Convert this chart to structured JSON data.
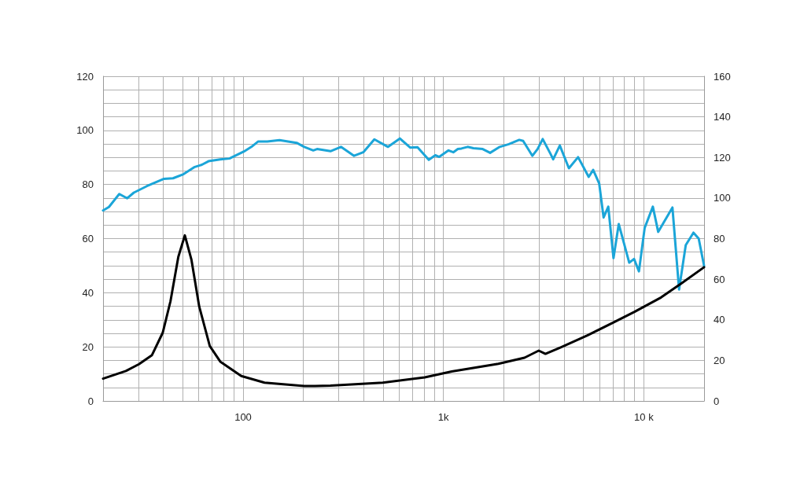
{
  "chart_data": {
    "type": "line",
    "log": "x",
    "grid": true,
    "marker": "none",
    "line_style": "solid",
    "xlim": [
      20,
      20000
    ],
    "xticks": [
      {
        "value": 20,
        "label": null
      },
      {
        "value": 30,
        "label": null
      },
      {
        "value": 40,
        "label": null
      },
      {
        "value": 50,
        "label": null
      },
      {
        "value": 60,
        "label": null
      },
      {
        "value": 70,
        "label": null
      },
      {
        "value": 80,
        "label": null
      },
      {
        "value": 90,
        "label": null
      },
      {
        "value": 100,
        "label": "100"
      },
      {
        "value": 200,
        "label": null
      },
      {
        "value": 300,
        "label": null
      },
      {
        "value": 400,
        "label": null
      },
      {
        "value": 500,
        "label": null
      },
      {
        "value": 600,
        "label": null
      },
      {
        "value": 700,
        "label": null
      },
      {
        "value": 800,
        "label": null
      },
      {
        "value": 900,
        "label": null
      },
      {
        "value": 1000,
        "label": "1k"
      },
      {
        "value": 2000,
        "label": null
      },
      {
        "value": 3000,
        "label": null
      },
      {
        "value": 4000,
        "label": null
      },
      {
        "value": 5000,
        "label": null
      },
      {
        "value": 6000,
        "label": null
      },
      {
        "value": 7000,
        "label": null
      },
      {
        "value": 8000,
        "label": null
      },
      {
        "value": 9000,
        "label": null
      },
      {
        "value": 10000,
        "label": "10 k"
      },
      {
        "value": 20000,
        "label": null
      }
    ],
    "ylim": [
      0,
      120
    ],
    "yticks": [
      0,
      {
        "value": 5,
        "label": null
      },
      {
        "value": 10,
        "label": null
      },
      {
        "value": 15,
        "label": null
      },
      20,
      {
        "value": 25,
        "label": null
      },
      {
        "value": 30,
        "label": null
      },
      {
        "value": 35,
        "label": null
      },
      40,
      {
        "value": 45,
        "label": null
      },
      {
        "value": 50,
        "label": null
      },
      {
        "value": 55,
        "label": null
      },
      60,
      {
        "value": 65,
        "label": null
      },
      {
        "value": 70,
        "label": null
      },
      {
        "value": 75,
        "label": null
      },
      80,
      {
        "value": 85,
        "label": null
      },
      {
        "value": 90,
        "label": null
      },
      {
        "value": 95,
        "label": null
      },
      100,
      {
        "value": 105,
        "label": null
      },
      {
        "value": 110,
        "label": null
      },
      {
        "value": 115,
        "label": null
      },
      120
    ],
    "y2lim": [
      0,
      160
    ],
    "y2ticks": [
      0,
      20,
      40,
      60,
      80,
      100,
      120,
      140,
      160
    ],
    "series": [
      {
        "color": "#1ba5d8",
        "x": [
          20,
          21.4,
          24.1,
          26.4,
          28.5,
          33.1,
          40.3,
          44.7,
          50.4,
          57,
          62.3,
          67.2,
          76.9,
          85.5,
          101,
          110,
          119,
          132,
          152,
          185,
          202,
          224,
          234,
          273,
          308,
          358,
          398,
          452,
          529,
          606,
          684,
          742,
          845,
          911,
          953,
          1060,
          1120,
          1180,
          1230,
          1320,
          1410,
          1570,
          1710,
          1910,
          2120,
          2390,
          2500,
          2780,
          2950,
          3130,
          3430,
          3530,
          3810,
          4230,
          4700,
          5310,
          5590,
          5990,
          6300,
          6650,
          7060,
          7500,
          8460,
          8940,
          9460,
          10100,
          11100,
          11800,
          13900,
          15000,
          16200,
          17700,
          18800,
          20000
        ],
        "values": [
          70.4,
          71.7,
          76.5,
          74.9,
          77,
          79.4,
          82.1,
          82.3,
          83.8,
          86.4,
          87.3,
          88.6,
          89.3,
          89.6,
          92.2,
          93.9,
          95.9,
          95.9,
          96.4,
          95.4,
          93.9,
          92.6,
          93.1,
          92.3,
          93.9,
          90.6,
          91.9,
          96.7,
          93.9,
          97,
          93.6,
          93.8,
          89.1,
          90.8,
          90.2,
          92.6,
          91.9,
          93.1,
          93.3,
          93.9,
          93.4,
          93.1,
          91.7,
          93.9,
          94.9,
          96.5,
          96.1,
          90.6,
          93.1,
          96.8,
          91.2,
          89.3,
          94.4,
          86,
          90.1,
          82.8,
          85.4,
          80.4,
          67.8,
          71.8,
          52.8,
          65.4,
          51.1,
          52.5,
          47.9,
          63.9,
          71.8,
          62.5,
          71.5,
          41.2,
          57.6,
          62.2,
          60,
          49.9
        ]
      },
      {
        "color": "#000000",
        "axis": "y2",
        "x": [
          20,
          26,
          30.2,
          35.1,
          39.7,
          43.4,
          47.5,
          51.2,
          55.2,
          60.4,
          68.2,
          76.9,
          97.9,
          128,
          202,
          228,
          273,
          498,
          807,
          1100,
          1880,
          2540,
          2990,
          3230,
          3280,
          3870,
          5230,
          7060,
          8990,
          12200,
          15500,
          20000
        ],
        "values": [
          11,
          14.8,
          18.1,
          22.6,
          33.6,
          49.1,
          71,
          81.6,
          69.7,
          46.5,
          27.1,
          19.4,
          12.3,
          9,
          7.4,
          7.4,
          7.6,
          9,
          11.6,
          14.5,
          18.3,
          21.3,
          24.8,
          23.2,
          23.5,
          26.5,
          32.3,
          38.7,
          43.9,
          51,
          58.1,
          65.9
        ]
      }
    ]
  }
}
